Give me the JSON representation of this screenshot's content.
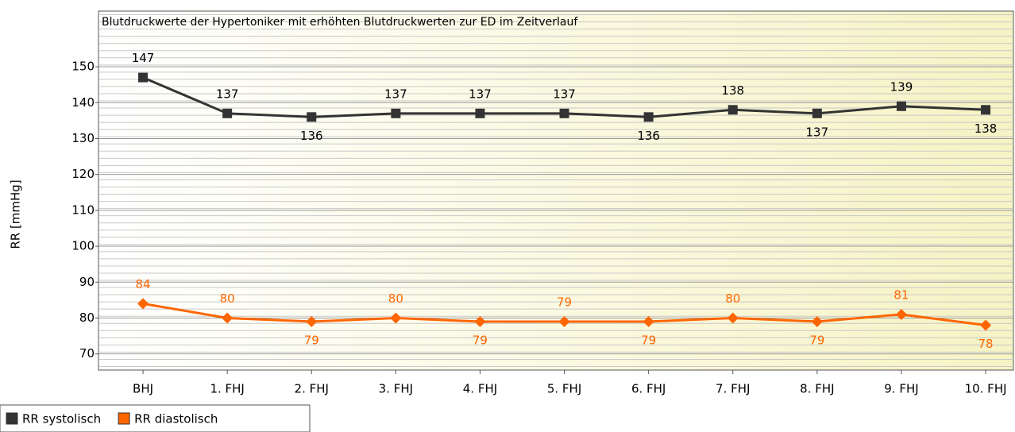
{
  "chart_data": {
    "type": "line",
    "title": "Blutdruckwerte der Hypertoniker mit erhöhten Blutdruckwerten zur ED im Zeitverlauf",
    "y_label": "RR [mmHg]",
    "categories": [
      "BHJ",
      "1. FHJ",
      "2. FHJ",
      "3. FHJ",
      "4. FHJ",
      "5. FHJ",
      "6. FHJ",
      "7. FHJ",
      "8. FHJ",
      "9. FHJ",
      "10. FHJ"
    ],
    "series": [
      {
        "name": "RR systolisch",
        "color": "#333333",
        "marker": "square",
        "values": [
          147,
          137,
          136,
          137,
          137,
          137,
          136,
          138,
          137,
          139,
          138
        ]
      },
      {
        "name": "RR diastolisch",
        "color": "#ff6600",
        "marker": "diamond",
        "values": [
          84,
          80,
          79,
          80,
          79,
          79,
          79,
          80,
          79,
          81,
          78
        ]
      }
    ],
    "ylim": [
      65.5,
      165.5
    ],
    "yticks": [
      70,
      80,
      90,
      100,
      110,
      120,
      130,
      140,
      150
    ],
    "grid": true
  }
}
